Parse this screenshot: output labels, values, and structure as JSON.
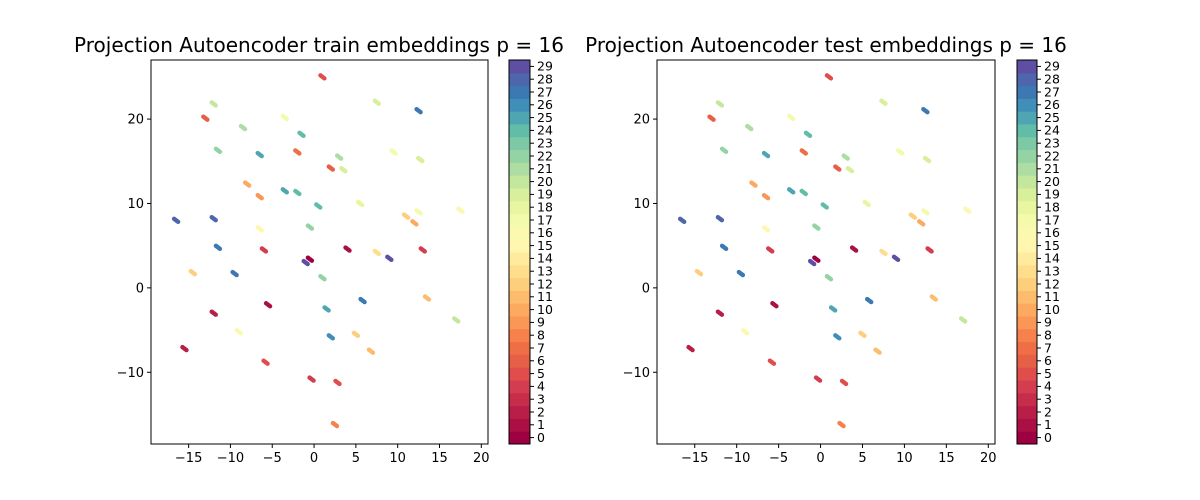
{
  "chart_data": [
    {
      "type": "scatter",
      "title": "Projection Autoencoder train embeddings p = 16",
      "xlim": [
        -19.5,
        20.8
      ],
      "ylim": [
        -18.5,
        27.0
      ],
      "xticks": [
        -15,
        -10,
        -5,
        0,
        5,
        10,
        15,
        20
      ],
      "xtick_labels": [
        "−15",
        "−10",
        "−5",
        "0",
        "5",
        "10",
        "15",
        "20"
      ],
      "yticks": [
        -10,
        0,
        10,
        20
      ],
      "ytick_labels": [
        "−10",
        "0",
        "10",
        "20"
      ],
      "colormap": "Spectral",
      "colorbar_ticks": [
        "0",
        "1",
        "2",
        "3",
        "4",
        "5",
        "6",
        "7",
        "8",
        "9",
        "10",
        "11",
        "12",
        "13",
        "14",
        "15",
        "16",
        "17",
        "18",
        "19",
        "20",
        "21",
        "22",
        "23",
        "24",
        "25",
        "26",
        "27",
        "28",
        "29"
      ],
      "grid": false,
      "clusters": [
        {
          "x": 1.0,
          "y": 25.0,
          "c": 5
        },
        {
          "x": -12.0,
          "y": 21.8,
          "c": 20
        },
        {
          "x": -13.0,
          "y": 20.1,
          "c": 6
        },
        {
          "x": -8.5,
          "y": 19.0,
          "c": 21
        },
        {
          "x": 7.5,
          "y": 22.0,
          "c": 19
        },
        {
          "x": 12.5,
          "y": 21.0,
          "c": 27
        },
        {
          "x": -3.5,
          "y": 20.2,
          "c": 17
        },
        {
          "x": -1.5,
          "y": 18.2,
          "c": 24
        },
        {
          "x": -11.5,
          "y": 16.3,
          "c": 22
        },
        {
          "x": -6.5,
          "y": 15.8,
          "c": 25
        },
        {
          "x": -2.0,
          "y": 16.1,
          "c": 7
        },
        {
          "x": 3.0,
          "y": 15.5,
          "c": 21
        },
        {
          "x": 9.5,
          "y": 16.1,
          "c": 17
        },
        {
          "x": 12.7,
          "y": 15.2,
          "c": 19
        },
        {
          "x": 2.0,
          "y": 14.2,
          "c": 6
        },
        {
          "x": 3.5,
          "y": 14.0,
          "c": 19
        },
        {
          "x": -8.0,
          "y": 12.3,
          "c": 10
        },
        {
          "x": -3.5,
          "y": 11.5,
          "c": 25
        },
        {
          "x": -2.0,
          "y": 11.3,
          "c": 24
        },
        {
          "x": -6.5,
          "y": 10.8,
          "c": 9
        },
        {
          "x": 0.5,
          "y": 9.7,
          "c": 24
        },
        {
          "x": 5.5,
          "y": 10.0,
          "c": 18
        },
        {
          "x": 11.0,
          "y": 8.5,
          "c": 12
        },
        {
          "x": 12.5,
          "y": 9.0,
          "c": 17
        },
        {
          "x": 17.5,
          "y": 9.2,
          "c": 16
        },
        {
          "x": -16.5,
          "y": 8.0,
          "c": 28
        },
        {
          "x": -12.0,
          "y": 8.2,
          "c": 28
        },
        {
          "x": -6.5,
          "y": 7.0,
          "c": 15
        },
        {
          "x": -0.5,
          "y": 7.2,
          "c": 22
        },
        {
          "x": 12.0,
          "y": 7.7,
          "c": 10
        },
        {
          "x": -11.5,
          "y": 4.8,
          "c": 27
        },
        {
          "x": -6.0,
          "y": 4.5,
          "c": 4
        },
        {
          "x": 4.0,
          "y": 4.6,
          "c": 1
        },
        {
          "x": 7.5,
          "y": 4.2,
          "c": 13
        },
        {
          "x": 9.0,
          "y": 3.5,
          "c": 29
        },
        {
          "x": 13.0,
          "y": 4.5,
          "c": 4
        },
        {
          "x": -1.0,
          "y": 3.0,
          "c": 29
        },
        {
          "x": -0.5,
          "y": 3.4,
          "c": 0
        },
        {
          "x": -14.5,
          "y": 1.8,
          "c": 12
        },
        {
          "x": -9.5,
          "y": 1.7,
          "c": 27
        },
        {
          "x": 1.0,
          "y": 1.2,
          "c": 22
        },
        {
          "x": 13.5,
          "y": -1.2,
          "c": 11
        },
        {
          "x": -5.5,
          "y": -2.0,
          "c": 1
        },
        {
          "x": 5.8,
          "y": -1.5,
          "c": 27
        },
        {
          "x": -12.0,
          "y": -3.0,
          "c": 2
        },
        {
          "x": 1.5,
          "y": -2.5,
          "c": 25
        },
        {
          "x": 17.0,
          "y": -3.8,
          "c": 20
        },
        {
          "x": -9.0,
          "y": -5.2,
          "c": 16
        },
        {
          "x": 5.0,
          "y": -5.5,
          "c": 12
        },
        {
          "x": 2.0,
          "y": -5.8,
          "c": 26
        },
        {
          "x": -15.5,
          "y": -7.2,
          "c": 2
        },
        {
          "x": 6.8,
          "y": -7.5,
          "c": 11
        },
        {
          "x": -5.8,
          "y": -8.8,
          "c": 5
        },
        {
          "x": -0.3,
          "y": -10.8,
          "c": 4
        },
        {
          "x": 2.8,
          "y": -11.2,
          "c": 5
        },
        {
          "x": 2.5,
          "y": -16.2,
          "c": 8
        }
      ]
    },
    {
      "type": "scatter",
      "title": "Projection Autoencoder test embeddings p = 16",
      "xlim": [
        -19.5,
        20.8
      ],
      "ylim": [
        -18.5,
        27.0
      ],
      "xticks": [
        -15,
        -10,
        -5,
        0,
        5,
        10,
        15,
        20
      ],
      "xtick_labels": [
        "−15",
        "−10",
        "−5",
        "0",
        "5",
        "10",
        "15",
        "20"
      ],
      "yticks": [
        -10,
        0,
        10,
        20
      ],
      "ytick_labels": [
        "−10",
        "0",
        "10",
        "20"
      ],
      "colormap": "Spectral",
      "colorbar_ticks": [
        "0",
        "1",
        "2",
        "3",
        "4",
        "5",
        "6",
        "7",
        "8",
        "9",
        "10",
        "11",
        "12",
        "13",
        "14",
        "15",
        "16",
        "17",
        "18",
        "19",
        "20",
        "21",
        "22",
        "23",
        "24",
        "25",
        "26",
        "27",
        "28",
        "29"
      ],
      "grid": false,
      "clusters": [
        {
          "x": 1.0,
          "y": 25.0,
          "c": 5
        },
        {
          "x": -12.0,
          "y": 21.8,
          "c": 20
        },
        {
          "x": -13.0,
          "y": 20.1,
          "c": 6
        },
        {
          "x": -8.5,
          "y": 19.0,
          "c": 21
        },
        {
          "x": 7.5,
          "y": 22.0,
          "c": 19
        },
        {
          "x": 12.5,
          "y": 21.0,
          "c": 27
        },
        {
          "x": -3.5,
          "y": 20.2,
          "c": 17
        },
        {
          "x": -1.5,
          "y": 18.2,
          "c": 24
        },
        {
          "x": -11.5,
          "y": 16.3,
          "c": 22
        },
        {
          "x": -6.5,
          "y": 15.8,
          "c": 25
        },
        {
          "x": -2.0,
          "y": 16.1,
          "c": 7
        },
        {
          "x": 3.0,
          "y": 15.5,
          "c": 21
        },
        {
          "x": 9.5,
          "y": 16.1,
          "c": 17
        },
        {
          "x": 12.7,
          "y": 15.2,
          "c": 19
        },
        {
          "x": 2.0,
          "y": 14.2,
          "c": 6
        },
        {
          "x": 3.5,
          "y": 14.0,
          "c": 19
        },
        {
          "x": -8.0,
          "y": 12.3,
          "c": 10
        },
        {
          "x": -3.5,
          "y": 11.5,
          "c": 25
        },
        {
          "x": -2.0,
          "y": 11.3,
          "c": 24
        },
        {
          "x": -6.5,
          "y": 10.8,
          "c": 9
        },
        {
          "x": 0.5,
          "y": 9.7,
          "c": 24
        },
        {
          "x": 5.5,
          "y": 10.0,
          "c": 18
        },
        {
          "x": 11.0,
          "y": 8.5,
          "c": 12
        },
        {
          "x": 12.5,
          "y": 9.0,
          "c": 17
        },
        {
          "x": 17.5,
          "y": 9.2,
          "c": 16
        },
        {
          "x": -16.5,
          "y": 8.0,
          "c": 28
        },
        {
          "x": -12.0,
          "y": 8.2,
          "c": 28
        },
        {
          "x": -6.5,
          "y": 7.0,
          "c": 15
        },
        {
          "x": -0.5,
          "y": 7.2,
          "c": 22
        },
        {
          "x": 12.0,
          "y": 7.7,
          "c": 10
        },
        {
          "x": -11.5,
          "y": 4.8,
          "c": 27
        },
        {
          "x": -6.0,
          "y": 4.5,
          "c": 4
        },
        {
          "x": 4.0,
          "y": 4.6,
          "c": 1
        },
        {
          "x": 7.5,
          "y": 4.2,
          "c": 13
        },
        {
          "x": 9.0,
          "y": 3.5,
          "c": 29
        },
        {
          "x": 13.0,
          "y": 4.5,
          "c": 4
        },
        {
          "x": -1.0,
          "y": 3.0,
          "c": 29
        },
        {
          "x": -0.5,
          "y": 3.4,
          "c": 0
        },
        {
          "x": -14.5,
          "y": 1.8,
          "c": 12
        },
        {
          "x": -9.5,
          "y": 1.7,
          "c": 27
        },
        {
          "x": 1.0,
          "y": 1.2,
          "c": 22
        },
        {
          "x": 13.5,
          "y": -1.2,
          "c": 11
        },
        {
          "x": -5.5,
          "y": -2.0,
          "c": 1
        },
        {
          "x": 5.8,
          "y": -1.5,
          "c": 27
        },
        {
          "x": -12.0,
          "y": -3.0,
          "c": 2
        },
        {
          "x": 1.5,
          "y": -2.5,
          "c": 25
        },
        {
          "x": 17.0,
          "y": -3.8,
          "c": 20
        },
        {
          "x": -9.0,
          "y": -5.2,
          "c": 16
        },
        {
          "x": 5.0,
          "y": -5.5,
          "c": 12
        },
        {
          "x": 2.0,
          "y": -5.8,
          "c": 26
        },
        {
          "x": -15.5,
          "y": -7.2,
          "c": 2
        },
        {
          "x": 6.8,
          "y": -7.5,
          "c": 11
        },
        {
          "x": -5.8,
          "y": -8.8,
          "c": 5
        },
        {
          "x": -0.3,
          "y": -10.8,
          "c": 4
        },
        {
          "x": 2.8,
          "y": -11.2,
          "c": 5
        },
        {
          "x": 2.5,
          "y": -16.2,
          "c": 8
        }
      ]
    }
  ],
  "palette": [
    "#9e0142",
    "#aa1044",
    "#b91e48",
    "#c72d4a",
    "#d43d4f",
    "#df4e4b",
    "#e65f47",
    "#ef6e45",
    "#f7814c",
    "#fa9656",
    "#fcaa5f",
    "#fdbc6d",
    "#fdce7c",
    "#fedd8d",
    "#feeb9d",
    "#fff6b0",
    "#fbf9b1",
    "#f3faac",
    "#e9f6a1",
    "#d8ef9b",
    "#c4e79e",
    "#addda2",
    "#94d3a4",
    "#7dc9a6",
    "#62bda8",
    "#4fa6b2",
    "#3f8fb9",
    "#3c79b3",
    "#4d66ac",
    "#5e4fa2"
  ]
}
